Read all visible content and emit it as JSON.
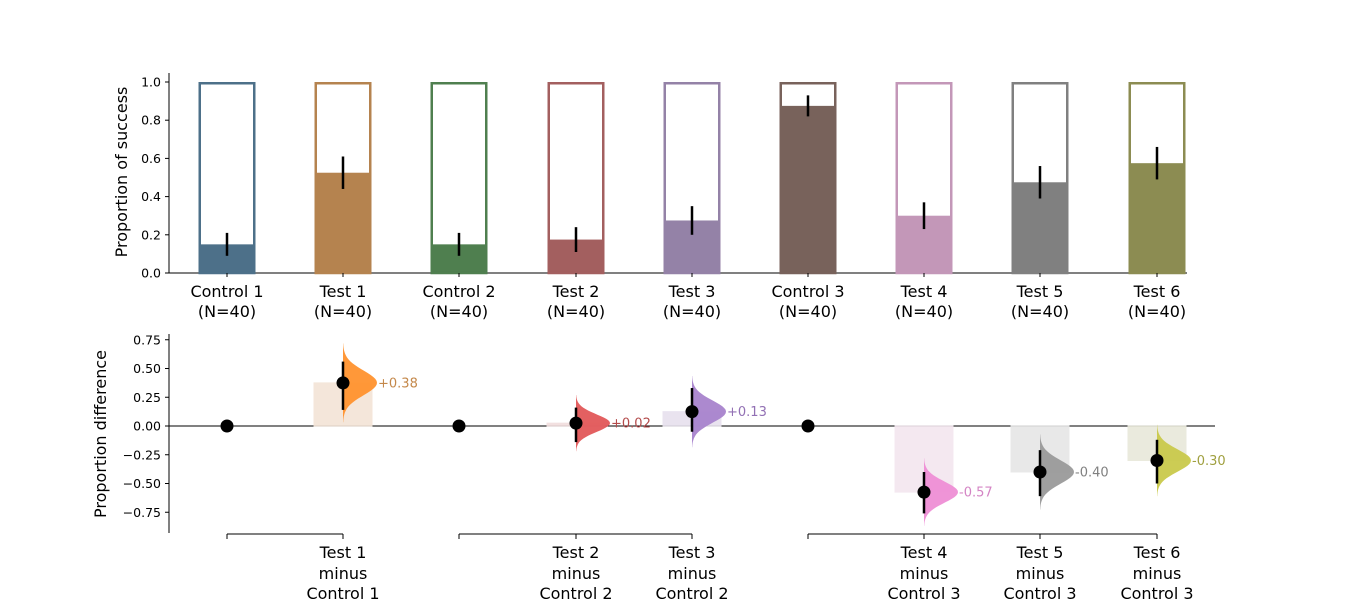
{
  "chart_data": [
    {
      "type": "bar",
      "ylabel": "Proportion of success",
      "ylim": [
        0,
        1.0
      ],
      "yticks": [
        "0.0",
        "0.2",
        "0.4",
        "0.6",
        "0.8",
        "1.0"
      ],
      "groups": [
        {
          "name": "Control 1",
          "n_label": "(N=40)",
          "value": 0.15,
          "ci": [
            0.09,
            0.21
          ],
          "color": "#4d7089"
        },
        {
          "name": "Test 1",
          "n_label": "(N=40)",
          "value": 0.525,
          "ci": [
            0.44,
            0.61
          ],
          "color": "#b5834f"
        },
        {
          "name": "Control 2",
          "n_label": "(N=40)",
          "value": 0.15,
          "ci": [
            0.09,
            0.21
          ],
          "color": "#4f7f4f"
        },
        {
          "name": "Test 2",
          "n_label": "(N=40)",
          "value": 0.175,
          "ci": [
            0.11,
            0.24
          ],
          "color": "#a35f5f"
        },
        {
          "name": "Test 3",
          "n_label": "(N=40)",
          "value": 0.275,
          "ci": [
            0.2,
            0.35
          ],
          "color": "#9482a7"
        },
        {
          "name": "Control 3",
          "n_label": "(N=40)",
          "value": 0.875,
          "ci": [
            0.82,
            0.93
          ],
          "color": "#78625b"
        },
        {
          "name": "Test 4",
          "n_label": "(N=40)",
          "value": 0.3,
          "ci": [
            0.23,
            0.37
          ],
          "color": "#c397b8"
        },
        {
          "name": "Test 5",
          "n_label": "(N=40)",
          "value": 0.475,
          "ci": [
            0.39,
            0.56
          ],
          "color": "#808080"
        },
        {
          "name": "Test 6",
          "n_label": "(N=40)",
          "value": 0.575,
          "ci": [
            0.49,
            0.66
          ],
          "color": "#8c8c52"
        }
      ]
    },
    {
      "type": "scatter",
      "ylabel": "Proportion difference",
      "ylim": [
        -0.93,
        0.8
      ],
      "yticks": [
        "0.75",
        "0.50",
        "0.25",
        "0.00",
        "−0.25",
        "−0.50",
        "−0.75"
      ],
      "controls": [
        "Control 1",
        "Control 2",
        "Control 3"
      ],
      "contrasts": [
        {
          "test": "Test 1",
          "minus": "minus",
          "control": "Control 1",
          "delta": 0.375,
          "ci": [
            0.14,
            0.56
          ],
          "label": "+0.38",
          "label_color": "#c4884a",
          "violin_color": "#ff922e",
          "bar_color": "#f3e4d6"
        },
        {
          "test": "Test 2",
          "minus": "minus",
          "control": "Control 2",
          "delta": 0.025,
          "ci": [
            -0.14,
            0.16
          ],
          "label": "+0.02",
          "label_color": "#b34b4b",
          "violin_color": "#e15759",
          "bar_color": "#f1dddd"
        },
        {
          "test": "Test 3",
          "minus": "minus",
          "control": "Control 2",
          "delta": 0.125,
          "ci": [
            -0.05,
            0.33
          ],
          "label": "+0.13",
          "label_color": "#9270b4",
          "violin_color": "#a883cc",
          "bar_color": "#e7e1ee"
        },
        {
          "test": "Test 4",
          "minus": "minus",
          "control": "Control 3",
          "delta": -0.575,
          "ci": [
            -0.76,
            -0.4
          ],
          "label": "-0.57",
          "label_color": "#d484c4",
          "violin_color": "#ee8ed5",
          "bar_color": "#f3e6ef"
        },
        {
          "test": "Test 5",
          "minus": "minus",
          "control": "Control 3",
          "delta": -0.4,
          "ci": [
            -0.61,
            -0.21
          ],
          "label": "-0.40",
          "label_color": "#808080",
          "violin_color": "#9a9a9a",
          "bar_color": "#e6e6e6"
        },
        {
          "test": "Test 6",
          "minus": "minus",
          "control": "Control 3",
          "delta": -0.3,
          "ci": [
            -0.5,
            -0.12
          ],
          "label": "-0.30",
          "label_color": "#a0a040",
          "violin_color": "#c9c94b",
          "bar_color": "#e8e8da"
        }
      ]
    }
  ]
}
